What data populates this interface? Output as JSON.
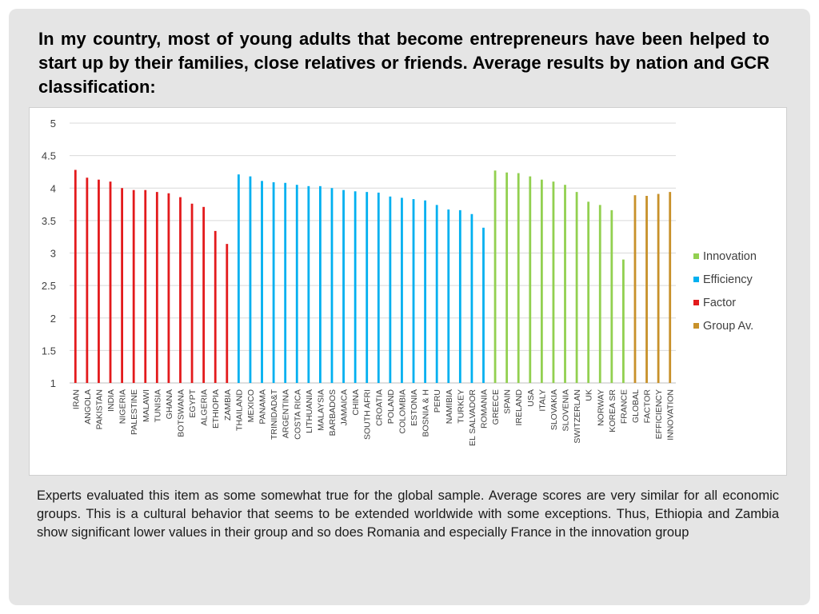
{
  "heading": "In my country, most of young adults that become entrepreneurs have been helped to start up by their families, close relatives or friends. Average results by nation and GCR classification:",
  "note": "Experts evaluated this item as some somewhat true for the global sample. Average scores are very similar for all economic groups. This is a cultural behavior that seems to be extended worldwide with some exceptions. Thus, Ethiopia and Zambia show  significant lower values in their group and so does Romania  and especially France in the innovation group",
  "chart_data": {
    "type": "bar",
    "title": "",
    "xlabel": "",
    "ylabel": "",
    "ylim": [
      1,
      5
    ],
    "yticks": [
      "1",
      "1.5",
      "2",
      "2.5",
      "3",
      "3.5",
      "4",
      "4.5",
      "5"
    ],
    "grid": true,
    "legend_position": "right",
    "legend": [
      {
        "name": "Innovation",
        "color": "#92d050"
      },
      {
        "name": "Efficiency",
        "color": "#00b0f0"
      },
      {
        "name": "Factor",
        "color": "#e31a1c"
      },
      {
        "name": "Group Av.",
        "color": "#c8912a"
      }
    ],
    "colors": {
      "Factor": "#e31a1c",
      "Efficiency": "#00b0f0",
      "Innovation": "#92d050",
      "Group Av.": "#c8912a"
    },
    "bars": [
      {
        "label": "IRAN",
        "value": 4.28,
        "group": "Factor"
      },
      {
        "label": "ANGOLA",
        "value": 4.16,
        "group": "Factor"
      },
      {
        "label": "PAKISTAN",
        "value": 4.13,
        "group": "Factor"
      },
      {
        "label": "INDIA",
        "value": 4.1,
        "group": "Factor"
      },
      {
        "label": "NIGERIA",
        "value": 4.0,
        "group": "Factor"
      },
      {
        "label": "PALESTINE",
        "value": 3.97,
        "group": "Factor"
      },
      {
        "label": "MALAWI",
        "value": 3.97,
        "group": "Factor"
      },
      {
        "label": "TUNISIA",
        "value": 3.94,
        "group": "Factor"
      },
      {
        "label": "GHANA",
        "value": 3.92,
        "group": "Factor"
      },
      {
        "label": "BOTSWANA",
        "value": 3.86,
        "group": "Factor"
      },
      {
        "label": "EGYPT",
        "value": 3.76,
        "group": "Factor"
      },
      {
        "label": "ALGERIA",
        "value": 3.71,
        "group": "Factor"
      },
      {
        "label": "ETHIOPIA",
        "value": 3.34,
        "group": "Factor"
      },
      {
        "label": "ZAMBIA",
        "value": 3.14,
        "group": "Factor"
      },
      {
        "label": "THAILAND",
        "value": 4.21,
        "group": "Efficiency"
      },
      {
        "label": "MEXICO",
        "value": 4.18,
        "group": "Efficiency"
      },
      {
        "label": "PANAMA",
        "value": 4.11,
        "group": "Efficiency"
      },
      {
        "label": "TRINIDAD&T",
        "value": 4.09,
        "group": "Efficiency"
      },
      {
        "label": "ARGENTINA",
        "value": 4.08,
        "group": "Efficiency"
      },
      {
        "label": "COSTA RICA",
        "value": 4.05,
        "group": "Efficiency"
      },
      {
        "label": "LITHUANIA",
        "value": 4.03,
        "group": "Efficiency"
      },
      {
        "label": "MALAYSIA",
        "value": 4.03,
        "group": "Efficiency"
      },
      {
        "label": "BARBADOS",
        "value": 4.0,
        "group": "Efficiency"
      },
      {
        "label": "JAMAICA",
        "value": 3.97,
        "group": "Efficiency"
      },
      {
        "label": "CHINA",
        "value": 3.95,
        "group": "Efficiency"
      },
      {
        "label": "SOUTH AFRI",
        "value": 3.94,
        "group": "Efficiency"
      },
      {
        "label": "CROATIA",
        "value": 3.93,
        "group": "Efficiency"
      },
      {
        "label": "POLAND",
        "value": 3.87,
        "group": "Efficiency"
      },
      {
        "label": "COLOMBIA",
        "value": 3.85,
        "group": "Efficiency"
      },
      {
        "label": "ESTONIA",
        "value": 3.83,
        "group": "Efficiency"
      },
      {
        "label": "BOSNIA & H",
        "value": 3.81,
        "group": "Efficiency"
      },
      {
        "label": "PERU",
        "value": 3.74,
        "group": "Efficiency"
      },
      {
        "label": "NAMIBIA",
        "value": 3.67,
        "group": "Efficiency"
      },
      {
        "label": "TURKEY",
        "value": 3.66,
        "group": "Efficiency"
      },
      {
        "label": "EL SALVADOR",
        "value": 3.6,
        "group": "Efficiency"
      },
      {
        "label": "ROMANIA",
        "value": 3.39,
        "group": "Efficiency"
      },
      {
        "label": "GREECE",
        "value": 4.27,
        "group": "Innovation"
      },
      {
        "label": "SPAIN",
        "value": 4.24,
        "group": "Innovation"
      },
      {
        "label": "IRELAND",
        "value": 4.23,
        "group": "Innovation"
      },
      {
        "label": "USA",
        "value": 4.18,
        "group": "Innovation"
      },
      {
        "label": "ITALY",
        "value": 4.13,
        "group": "Innovation"
      },
      {
        "label": "SLOVAKIA",
        "value": 4.1,
        "group": "Innovation"
      },
      {
        "label": "SLOVENIA",
        "value": 4.05,
        "group": "Innovation"
      },
      {
        "label": "SWITZERLAN",
        "value": 3.94,
        "group": "Innovation"
      },
      {
        "label": "UK",
        "value": 3.79,
        "group": "Innovation"
      },
      {
        "label": "NORWAY",
        "value": 3.74,
        "group": "Innovation"
      },
      {
        "label": "KOREA SR",
        "value": 3.66,
        "group": "Innovation"
      },
      {
        "label": "FRANCE",
        "value": 2.9,
        "group": "Innovation"
      },
      {
        "label": "GLOBAL",
        "value": 3.89,
        "group": "Group Av."
      },
      {
        "label": "FACTOR",
        "value": 3.88,
        "group": "Group Av."
      },
      {
        "label": "EFFICIENCY",
        "value": 3.91,
        "group": "Group Av."
      },
      {
        "label": "INNOVATION",
        "value": 3.94,
        "group": "Group Av."
      }
    ]
  }
}
